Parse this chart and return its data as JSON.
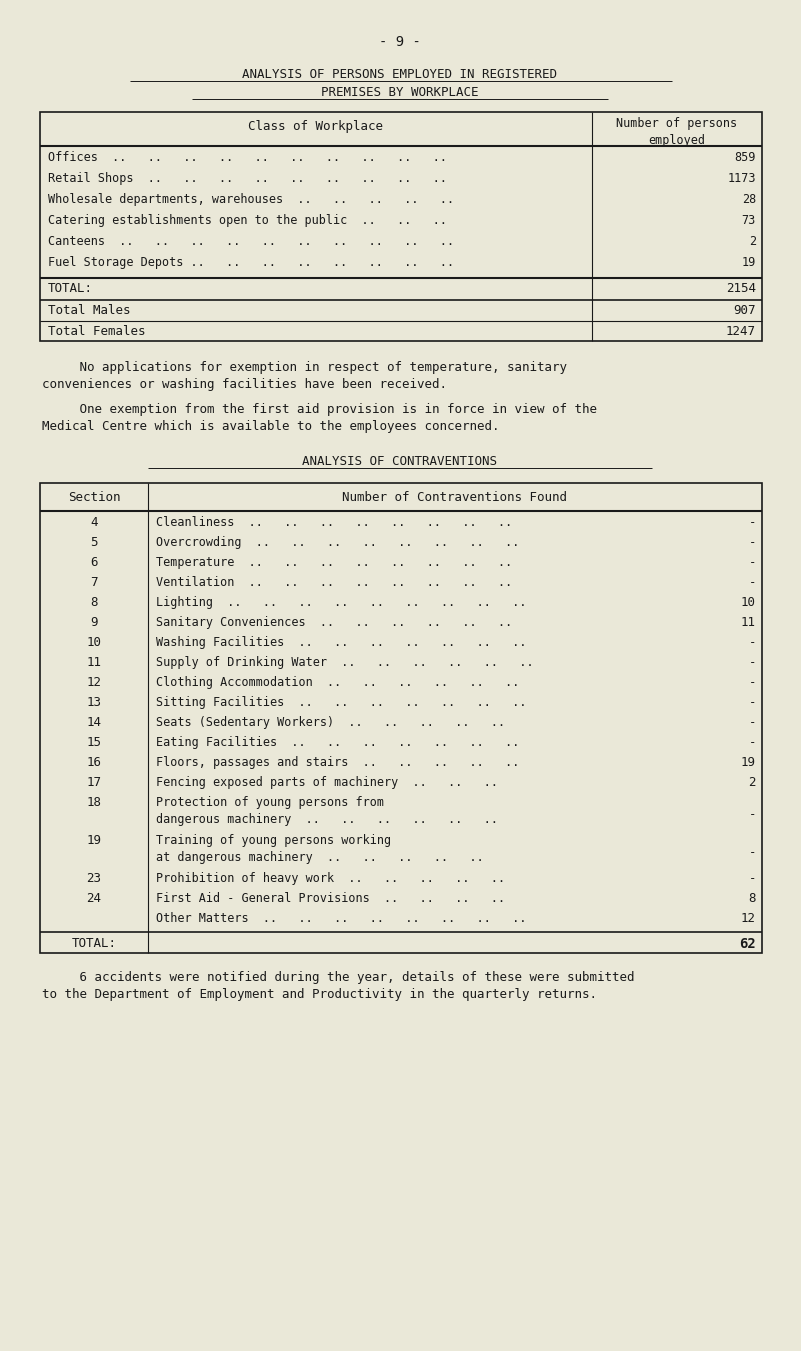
{
  "bg_color": "#eae8d8",
  "page_num": "- 9 -",
  "title1": "ANALYSIS OF PERSONS EMPLOYED IN REGISTERED",
  "title2": "PREMISES BY WORKPLACE",
  "table1_header_col1": "Class of Workplace",
  "table1_header_col2": "Number of persons\nemployed",
  "table1_rows": [
    [
      "Offices  ..   ..   ..   ..   ..   ..   ..   ..   ..   ..",
      "859"
    ],
    [
      "Retail Shops  ..   ..   ..   ..   ..   ..   ..   ..   ..",
      "1173"
    ],
    [
      "Wholesale departments, warehouses  ..   ..   ..   ..   ..",
      "28"
    ],
    [
      "Catering establishments open to the public  ..   ..   ..",
      "73"
    ],
    [
      "Canteens  ..   ..   ..   ..   ..   ..   ..   ..   ..   ..",
      "2"
    ],
    [
      "Fuel Storage Depots ..   ..   ..   ..   ..   ..   ..   ..",
      "19"
    ]
  ],
  "table1_total": [
    "TOTAL:",
    "2154"
  ],
  "table1_males": [
    "Total Males",
    "907"
  ],
  "table1_females": [
    "Total Females",
    "1247"
  ],
  "para1": "     No applications for exemption in respect of temperature, sanitary\nconveniences or washing facilities have been received.",
  "para2": "     One exemption from the first aid provision is in force in view of the\nMedical Centre which is available to the employees concerned.",
  "title3": "ANALYSIS OF CONTRAVENTIONS",
  "table2_header_col1": "Section",
  "table2_header_col2": "Number of Contraventions Found",
  "table2_rows": [
    [
      "4",
      "Cleanliness  ..   ..   ..   ..   ..   ..   ..   ..",
      "-"
    ],
    [
      "5",
      "Overcrowding  ..   ..   ..   ..   ..   ..   ..   ..",
      "-"
    ],
    [
      "6",
      "Temperature  ..   ..   ..   ..   ..   ..   ..   ..",
      "-"
    ],
    [
      "7",
      "Ventilation  ..   ..   ..   ..   ..   ..   ..   ..",
      "-"
    ],
    [
      "8",
      "Lighting  ..   ..   ..   ..   ..   ..   ..   ..   ..",
      "10"
    ],
    [
      "9",
      "Sanitary Conveniences  ..   ..   ..   ..   ..   ..",
      "11"
    ],
    [
      "10",
      "Washing Facilities  ..   ..   ..   ..   ..   ..   ..",
      "-"
    ],
    [
      "11",
      "Supply of Drinking Water  ..   ..   ..   ..   ..   ..",
      "-"
    ],
    [
      "12",
      "Clothing Accommodation  ..   ..   ..   ..   ..   ..",
      "-"
    ],
    [
      "13",
      "Sitting Facilities  ..   ..   ..   ..   ..   ..   ..",
      "-"
    ],
    [
      "14",
      "Seats (Sedentary Workers)  ..   ..   ..   ..   ..",
      "-"
    ],
    [
      "15",
      "Eating Facilities  ..   ..   ..   ..   ..   ..   ..",
      "-"
    ],
    [
      "16",
      "Floors, passages and stairs  ..   ..   ..   ..   ..",
      "19"
    ],
    [
      "17",
      "Fencing exposed parts of machinery  ..   ..   ..",
      "2"
    ],
    [
      "18",
      "Protection of young persons from\ndangerous machinery  ..   ..   ..   ..   ..   ..",
      "-"
    ],
    [
      "19",
      "Training of young persons working\nat dangerous machinery  ..   ..   ..   ..   ..",
      "-"
    ],
    [
      "23",
      "Prohibition of heavy work  ..   ..   ..   ..   ..",
      "-"
    ],
    [
      "24",
      "First Aid - General Provisions  ..   ..   ..   ..",
      "8"
    ],
    [
      "",
      "Other Matters  ..   ..   ..   ..   ..   ..   ..   ..",
      "12"
    ]
  ],
  "table2_total": [
    "TOTAL:",
    "62"
  ],
  "footer": "     6 accidents were notified during the year, details of these were submitted\nto the Department of Employment and Productivity in the quarterly returns."
}
